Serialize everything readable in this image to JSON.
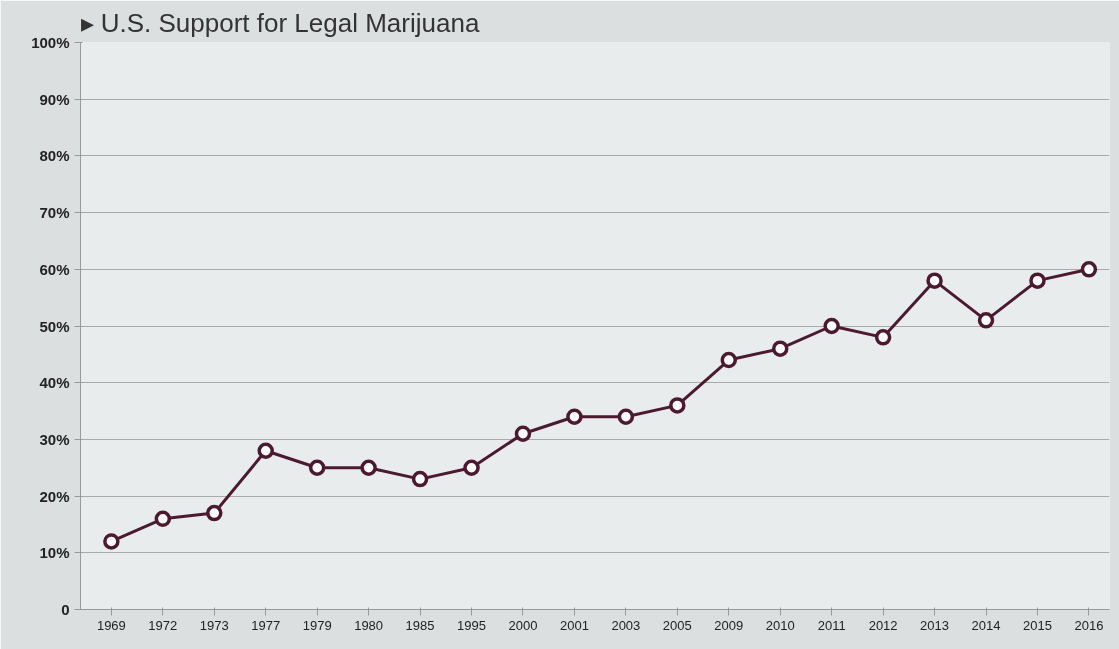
{
  "chart_data": {
    "type": "line",
    "title": "▸ U.S. Support for Legal Marijuana",
    "categories": [
      "1969",
      "1972",
      "1973",
      "1977",
      "1979",
      "1980",
      "1985",
      "1995",
      "2000",
      "2001",
      "2003",
      "2005",
      "2009",
      "2010",
      "2011",
      "2012",
      "2013",
      "2014",
      "2015",
      "2016"
    ],
    "series": [
      {
        "color": "#4b1a2f",
        "values": [
          12,
          16,
          17,
          28,
          25,
          25,
          23,
          25,
          31,
          34,
          34,
          36,
          44,
          46,
          50,
          48,
          58,
          51,
          58,
          60
        ]
      }
    ],
    "ylim": [
      0,
      100
    ],
    "yticks": [
      {
        "value": 0,
        "label": "0"
      },
      {
        "value": 10,
        "label": "10%"
      },
      {
        "value": 20,
        "label": "20%"
      },
      {
        "value": 30,
        "label": "30%"
      },
      {
        "value": 40,
        "label": "40%"
      },
      {
        "value": 50,
        "label": "50%"
      },
      {
        "value": 60,
        "label": "60%"
      },
      {
        "value": 70,
        "label": "70%"
      },
      {
        "value": 80,
        "label": "80%"
      },
      {
        "value": 90,
        "label": "90%"
      },
      {
        "value": 100,
        "label": "100%"
      }
    ],
    "grid": "y",
    "marker": "circle",
    "line_style": "solid"
  }
}
